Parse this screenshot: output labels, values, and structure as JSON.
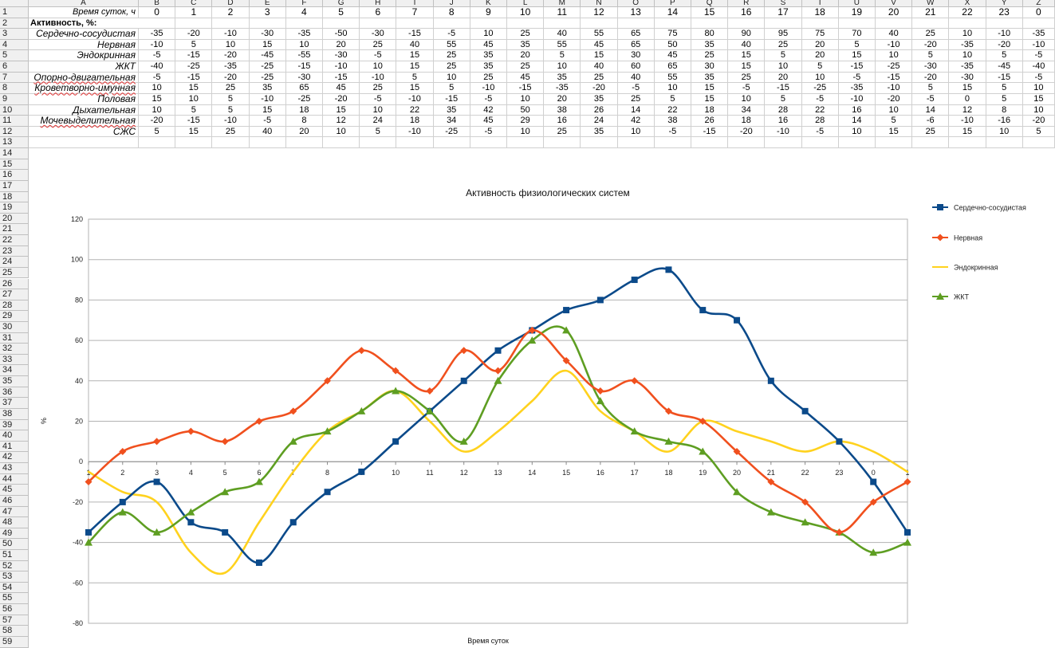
{
  "columns": [
    "A",
    "B",
    "C",
    "D",
    "E",
    "F",
    "G",
    "H",
    "I",
    "J",
    "K",
    "L",
    "M",
    "N",
    "O",
    "P",
    "Q",
    "R",
    "S",
    "T",
    "U",
    "V",
    "W",
    "X",
    "Y",
    "Z"
  ],
  "row_numbers": [
    "1",
    "2",
    "3",
    "4",
    "5",
    "6",
    "7",
    "8",
    "9",
    "10",
    "11",
    "12",
    "13",
    "14",
    "15",
    "16",
    "17",
    "18",
    "19",
    "20",
    "21",
    "22",
    "23",
    "24",
    "25",
    "26",
    "27",
    "28",
    "29",
    "30",
    "31",
    "32",
    "33",
    "34",
    "35",
    "36",
    "37",
    "38",
    "39",
    "40",
    "41",
    "42",
    "43",
    "44",
    "45",
    "46",
    "47",
    "48",
    "49",
    "50",
    "51",
    "52",
    "53",
    "54",
    "55",
    "56",
    "57",
    "58",
    "59"
  ],
  "table": {
    "time_label": "Время суток, ч",
    "hours": [
      "0",
      "1",
      "2",
      "3",
      "4",
      "5",
      "6",
      "7",
      "8",
      "9",
      "10",
      "11",
      "12",
      "13",
      "14",
      "15",
      "16",
      "17",
      "18",
      "19",
      "20",
      "21",
      "22",
      "23",
      "0"
    ],
    "section_label": "Активность, %:",
    "rows": [
      {
        "name": "Сердечно-сосудистая",
        "values": [
          "-35",
          "-20",
          "-10",
          "-30",
          "-35",
          "-50",
          "-30",
          "-15",
          "-5",
          "10",
          "25",
          "40",
          "55",
          "65",
          "75",
          "80",
          "90",
          "95",
          "75",
          "70",
          "40",
          "25",
          "10",
          "-10",
          "-35"
        ]
      },
      {
        "name": "Нервная",
        "values": [
          "-10",
          "5",
          "10",
          "15",
          "10",
          "20",
          "25",
          "40",
          "55",
          "45",
          "35",
          "55",
          "45",
          "65",
          "50",
          "35",
          "40",
          "25",
          "20",
          "5",
          "-10",
          "-20",
          "-35",
          "-20",
          "-10"
        ]
      },
      {
        "name": "Эндокринная",
        "values": [
          "-5",
          "-15",
          "-20",
          "-45",
          "-55",
          "-30",
          "-5",
          "15",
          "25",
          "35",
          "20",
          "5",
          "15",
          "30",
          "45",
          "25",
          "15",
          "5",
          "20",
          "15",
          "10",
          "5",
          "10",
          "5",
          "-5"
        ]
      },
      {
        "name": "ЖКТ",
        "values": [
          "-40",
          "-25",
          "-35",
          "-25",
          "-15",
          "-10",
          "10",
          "15",
          "25",
          "35",
          "25",
          "10",
          "40",
          "60",
          "65",
          "30",
          "15",
          "10",
          "5",
          "-15",
          "-25",
          "-30",
          "-35",
          "-45",
          "-40"
        ]
      },
      {
        "name": "Опорно-двигательная",
        "values": [
          "-5",
          "-15",
          "-20",
          "-25",
          "-30",
          "-15",
          "-10",
          "5",
          "10",
          "25",
          "45",
          "35",
          "25",
          "40",
          "55",
          "35",
          "25",
          "20",
          "10",
          "-5",
          "-15",
          "-20",
          "-30",
          "-15",
          "-5"
        ]
      },
      {
        "name": "Кроветворно-имунная",
        "values": [
          "10",
          "15",
          "25",
          "35",
          "65",
          "45",
          "25",
          "15",
          "5",
          "-10",
          "-15",
          "-35",
          "-20",
          "-5",
          "10",
          "15",
          "-5",
          "-15",
          "-25",
          "-35",
          "-10",
          "5",
          "15",
          "5",
          "10"
        ]
      },
      {
        "name": "Половая",
        "values": [
          "15",
          "10",
          "5",
          "-10",
          "-25",
          "-20",
          "-5",
          "-10",
          "-15",
          "-5",
          "10",
          "20",
          "35",
          "25",
          "5",
          "15",
          "10",
          "5",
          "-5",
          "-10",
          "-20",
          "-5",
          "0",
          "5",
          "15"
        ]
      },
      {
        "name": "Дыхательная",
        "values": [
          "10",
          "5",
          "5",
          "15",
          "18",
          "15",
          "10",
          "22",
          "35",
          "42",
          "50",
          "38",
          "26",
          "14",
          "22",
          "18",
          "34",
          "28",
          "22",
          "16",
          "10",
          "14",
          "12",
          "8",
          "10"
        ]
      },
      {
        "name": "Мочевыделительная",
        "values": [
          "-20",
          "-15",
          "-10",
          "-5",
          "8",
          "12",
          "24",
          "18",
          "34",
          "45",
          "29",
          "16",
          "24",
          "42",
          "38",
          "26",
          "18",
          "16",
          "28",
          "14",
          "5",
          "-6",
          "-10",
          "-16",
          "-20"
        ]
      },
      {
        "name": "СЖС",
        "values": [
          "5",
          "15",
          "25",
          "40",
          "20",
          "10",
          "5",
          "-10",
          "-25",
          "-5",
          "10",
          "25",
          "35",
          "10",
          "-5",
          "-15",
          "-20",
          "-10",
          "-5",
          "10",
          "15",
          "25",
          "15",
          "10",
          "5"
        ]
      }
    ]
  },
  "chart_data": {
    "type": "line",
    "title": "Активность физиологических систем",
    "xlabel": "Время суток",
    "ylabel": "%",
    "x": [
      "1",
      "2",
      "3",
      "4",
      "5",
      "6",
      "7",
      "8",
      "9",
      "10",
      "11",
      "12",
      "13",
      "14",
      "15",
      "16",
      "17",
      "18",
      "19",
      "20",
      "21",
      "22",
      "23",
      "0",
      "1"
    ],
    "ylim": [
      -80,
      120
    ],
    "yticks": [
      "120",
      "100",
      "80",
      "60",
      "40",
      "20",
      "0",
      "-20",
      "-40",
      "-60",
      "-80"
    ],
    "grid": true,
    "legend": "right",
    "series": [
      {
        "name": "Сердечно-сосудистая",
        "color": "#0b4a8a",
        "marker": "square",
        "values": [
          -35,
          -20,
          -10,
          -30,
          -35,
          -50,
          -30,
          -15,
          -5,
          10,
          25,
          40,
          55,
          65,
          75,
          80,
          90,
          95,
          75,
          70,
          40,
          25,
          10,
          -10,
          -35
        ]
      },
      {
        "name": "Нервная",
        "color": "#f0501e",
        "marker": "diamond",
        "values": [
          -10,
          5,
          10,
          15,
          10,
          20,
          25,
          40,
          55,
          45,
          35,
          55,
          45,
          65,
          50,
          35,
          40,
          25,
          20,
          5,
          -10,
          -20,
          -35,
          -20,
          -10
        ]
      },
      {
        "name": "Эндокринная",
        "color": "#ffd21e",
        "marker": "none",
        "values": [
          -5,
          -15,
          -20,
          -45,
          -55,
          -30,
          -5,
          15,
          25,
          35,
          20,
          5,
          15,
          30,
          45,
          25,
          15,
          5,
          20,
          15,
          10,
          5,
          10,
          5,
          -5
        ]
      },
      {
        "name": "ЖКТ",
        "color": "#5e9e22",
        "marker": "triangle",
        "values": [
          -40,
          -25,
          -35,
          -25,
          -15,
          -10,
          10,
          15,
          25,
          35,
          25,
          10,
          40,
          60,
          65,
          30,
          15,
          10,
          5,
          -15,
          -25,
          -30,
          -35,
          -45,
          -40
        ]
      }
    ]
  }
}
